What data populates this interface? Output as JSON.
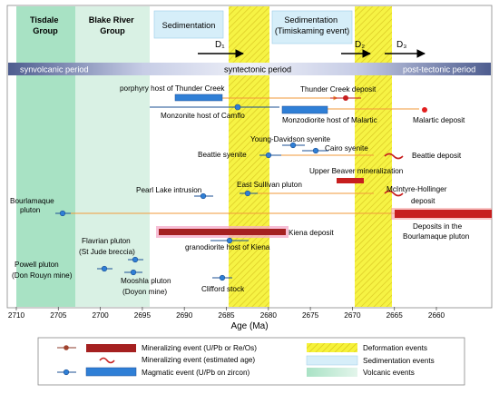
{
  "top_labels": {
    "tisdale": [
      "Tisdale",
      "Group"
    ],
    "blake_river": [
      "Blake River",
      "Group"
    ],
    "sedimentation_1": "Sedimentation",
    "sedimentation_2": [
      "Sedimentation",
      "(Timiskaming event)"
    ],
    "d1": "D₁",
    "d2": "D₂",
    "d3": "D₃"
  },
  "period_bar": {
    "synvolcanic": "synvolcanic period",
    "syntectonic": "syntectonic period",
    "post_tectonic": "post-tectonic period"
  },
  "events": {
    "thunder_creek_host": "porphyry host of Thunder Creek",
    "thunder_creek_deposit": "Thunder Creek deposit",
    "camflo_host": "Monzonite host of Camflo",
    "malartic_host": "Monzodiorite host of Malartic",
    "malartic_deposit": "Malartic deposit",
    "young_davidson": "Young-Davidson syenite",
    "cairo": "Cairo syenite",
    "beattie_syenite": "Beattie syenite",
    "beattie_deposit": "Beattie deposit",
    "upper_beaver": "Upper Beaver mineralization",
    "pearl_lake": "Pearl Lake intrusion",
    "east_sullivan": "East Sullivan pluton",
    "mcintyre": [
      "McIntyre-Hollinger",
      "deposit"
    ],
    "bourlamaque": [
      "Bourlamaque",
      "pluton"
    ],
    "bourlamaque_deposits": [
      "Deposits in the",
      "Bourlamaque pluton"
    ],
    "kiena_deposit": "Kiena deposit",
    "kiena_host": "granodiorite host of Kiena",
    "flavrian": [
      "Flavrian pluton",
      "(St Jude breccia)"
    ],
    "powell": [
      "Powell pluton",
      "(Don Rouyn mine)"
    ],
    "mooshla": [
      "Mooshla pluton",
      "(Doyon mine)"
    ],
    "clifford": "Clifford stock"
  },
  "axis": {
    "label": "Age (Ma)",
    "ticks": [
      "2710",
      "2705",
      "2700",
      "2695",
      "2690",
      "2685",
      "2680",
      "2675",
      "2670",
      "2665",
      "2660"
    ]
  },
  "legend": {
    "mineralizing_dated": "Mineralizing event (U/Pb or Re/Os)",
    "mineralizing_estimated": "Mineralizing event (estimated age)",
    "magmatic": "Magmatic event (U/Pb on zircon)",
    "deformation": "Deformation events",
    "sedimentation": "Sedimentation events",
    "volcanic": "Volcanic events"
  },
  "colors": {
    "volcanic_tisdale": "#a8e2c4",
    "volcanic_blake": "#d9f1e4",
    "sedimentation": "#d6eef9",
    "deformation": "#f6f23a",
    "magmatic": "#2f7fd6",
    "mineralizing": "#c71e1e",
    "period_bar": "#4f5d8c",
    "line_orange": "#f29a3a"
  }
}
